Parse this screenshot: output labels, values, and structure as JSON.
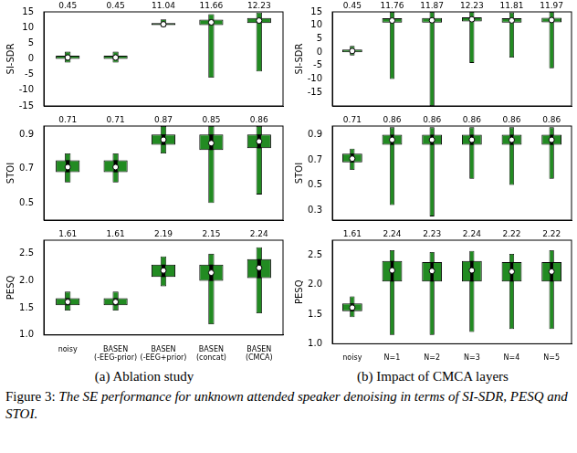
{
  "chart_data": [
    {
      "type": "violin",
      "panel": "a",
      "ylabel": "SI-SDR",
      "color": "#228b22",
      "grid": false,
      "tick_labels": "y",
      "categories": [
        "noisy",
        [
          "BASEN",
          "(-EEG-prior)"
        ],
        [
          "BASEN",
          "(-EEG+prior)"
        ],
        [
          "BASEN",
          "(concat)"
        ],
        [
          "BASEN",
          "(CMCA)"
        ]
      ],
      "ylim": [
        -15,
        15
      ],
      "yticks": [
        -15,
        -10,
        -5,
        0,
        5,
        10,
        15
      ],
      "violins": [
        {
          "min": -1.2,
          "q1": 0,
          "median": 0.45,
          "q3": 1.0,
          "max": 2.3,
          "mean": 0.45
        },
        {
          "min": -1.2,
          "q1": 0,
          "median": 0.45,
          "q3": 1.0,
          "max": 2.3,
          "mean": 0.45
        },
        {
          "min": 10.2,
          "q1": 10.8,
          "median": 11.04,
          "q3": 11.4,
          "max": 12.6,
          "mean": 11.04
        },
        {
          "min": -6,
          "q1": 10.8,
          "median": 11.66,
          "q3": 12.5,
          "max": 14.3,
          "mean": 11.66
        },
        {
          "min": -4,
          "q1": 11.4,
          "median": 12.23,
          "q3": 13.0,
          "max": 14.8,
          "mean": 12.23
        }
      ]
    },
    {
      "type": "violin",
      "panel": "b",
      "ylabel": "SI-SDR",
      "color": "#228b22",
      "grid": false,
      "tick_labels": "y",
      "categories": [
        "noisy",
        "N=1",
        "N=2",
        "N=3",
        "N=4",
        "N=5"
      ],
      "ylim": [
        -20,
        15
      ],
      "yticks": [
        -15,
        -10,
        -5,
        0,
        5,
        10,
        15
      ],
      "violins": [
        {
          "min": -1.2,
          "q1": 0,
          "median": 0.45,
          "q3": 1.0,
          "max": 2.3,
          "mean": 0.45
        },
        {
          "min": -10,
          "q1": 11,
          "median": 11.76,
          "q3": 12.6,
          "max": 15,
          "mean": 11.76
        },
        {
          "min": -20,
          "q1": 11,
          "median": 11.87,
          "q3": 12.7,
          "max": 15,
          "mean": 11.87
        },
        {
          "min": -4,
          "q1": 11.4,
          "median": 12.23,
          "q3": 13,
          "max": 15,
          "mean": 12.23
        },
        {
          "min": -2,
          "q1": 11,
          "median": 11.81,
          "q3": 12.6,
          "max": 14.8,
          "mean": 11.81
        },
        {
          "min": -6,
          "q1": 11.1,
          "median": 11.97,
          "q3": 12.8,
          "max": 15,
          "mean": 11.97
        }
      ]
    },
    {
      "type": "violin",
      "panel": "a",
      "ylabel": "STOI",
      "color": "#228b22",
      "grid": false,
      "tick_labels": "y",
      "categories": [
        "noisy",
        [
          "BASEN",
          "(-EEG-prior)"
        ],
        [
          "BASEN",
          "(-EEG+prior)"
        ],
        [
          "BASEN",
          "(concat)"
        ],
        [
          "BASEN",
          "(CMCA)"
        ]
      ],
      "ylim": [
        0.4,
        0.95
      ],
      "yticks": [
        0.5,
        0.7,
        0.9
      ],
      "violins": [
        {
          "min": 0.62,
          "q1": 0.68,
          "median": 0.71,
          "q3": 0.75,
          "max": 0.79,
          "mean": 0.71
        },
        {
          "min": 0.62,
          "q1": 0.68,
          "median": 0.71,
          "q3": 0.75,
          "max": 0.79,
          "mean": 0.71
        },
        {
          "min": 0.79,
          "q1": 0.84,
          "median": 0.87,
          "q3": 0.9,
          "max": 0.95,
          "mean": 0.87
        },
        {
          "min": 0.5,
          "q1": 0.81,
          "median": 0.85,
          "q3": 0.9,
          "max": 0.95,
          "mean": 0.85
        },
        {
          "min": 0.55,
          "q1": 0.82,
          "median": 0.86,
          "q3": 0.9,
          "max": 0.95,
          "mean": 0.86
        }
      ]
    },
    {
      "type": "violin",
      "panel": "b",
      "ylabel": "STOI",
      "color": "#228b22",
      "grid": false,
      "tick_labels": "y",
      "categories": [
        "noisy",
        "N=1",
        "N=2",
        "N=3",
        "N=4",
        "N=5"
      ],
      "ylim": [
        0.22,
        0.97
      ],
      "yticks": [
        0.3,
        0.5,
        0.7,
        0.9
      ],
      "violins": [
        {
          "min": 0.62,
          "q1": 0.68,
          "median": 0.71,
          "q3": 0.75,
          "max": 0.79,
          "mean": 0.71
        },
        {
          "min": 0.34,
          "q1": 0.82,
          "median": 0.86,
          "q3": 0.9,
          "max": 0.96,
          "mean": 0.86
        },
        {
          "min": 0.25,
          "q1": 0.82,
          "median": 0.86,
          "q3": 0.9,
          "max": 0.96,
          "mean": 0.86
        },
        {
          "min": 0.55,
          "q1": 0.82,
          "median": 0.86,
          "q3": 0.9,
          "max": 0.96,
          "mean": 0.86
        },
        {
          "min": 0.5,
          "q1": 0.82,
          "median": 0.86,
          "q3": 0.9,
          "max": 0.96,
          "mean": 0.86
        },
        {
          "min": 0.55,
          "q1": 0.82,
          "median": 0.86,
          "q3": 0.9,
          "max": 0.96,
          "mean": 0.86
        }
      ]
    },
    {
      "type": "violin",
      "panel": "a",
      "ylabel": "PESQ",
      "color": "#228b22",
      "grid": false,
      "tick_labels": true,
      "categories": [
        "noisy",
        [
          "BASEN",
          "(-EEG-prior)"
        ],
        [
          "BASEN",
          "(-EEG+prior)"
        ],
        [
          "BASEN",
          "(concat)"
        ],
        [
          "BASEN",
          "(CMCA)"
        ]
      ],
      "ylim": [
        1.0,
        2.75
      ],
      "yticks": [
        {
          "value": 1.0,
          "label": "1.0"
        },
        1.5,
        {
          "value": 2.0,
          "label": "2.0"
        },
        2.5
      ],
      "violins": [
        {
          "min": 1.45,
          "q1": 1.55,
          "median": 1.61,
          "q3": 1.68,
          "max": 1.8,
          "mean": 1.61
        },
        {
          "min": 1.45,
          "q1": 1.55,
          "median": 1.61,
          "q3": 1.68,
          "max": 1.8,
          "mean": 1.61
        },
        {
          "min": 1.9,
          "q1": 2.07,
          "median": 2.19,
          "q3": 2.3,
          "max": 2.45,
          "mean": 2.19
        },
        {
          "min": 1.2,
          "q1": 2.0,
          "median": 2.15,
          "q3": 2.3,
          "max": 2.5,
          "mean": 2.15
        },
        {
          "min": 1.4,
          "q1": 2.05,
          "median": 2.24,
          "q3": 2.4,
          "max": 2.62,
          "mean": 2.24
        }
      ]
    },
    {
      "type": "violin",
      "panel": "b",
      "ylabel": "PESQ",
      "color": "#228b22",
      "grid": false,
      "tick_labels": true,
      "categories": [
        "noisy",
        "N=1",
        "N=2",
        "N=3",
        "N=4",
        "N=5"
      ],
      "ylim": [
        1.0,
        2.75
      ],
      "yticks": [
        {
          "value": 1.0,
          "label": "1.0"
        },
        1.5,
        {
          "value": 2.0,
          "label": "2.0"
        },
        2.5
      ],
      "violins": [
        {
          "min": 1.45,
          "q1": 1.55,
          "median": 1.61,
          "q3": 1.68,
          "max": 1.8,
          "mean": 1.61
        },
        {
          "min": 1.15,
          "q1": 2.05,
          "median": 2.24,
          "q3": 2.4,
          "max": 2.58,
          "mean": 2.24
        },
        {
          "min": 1.15,
          "q1": 2.05,
          "median": 2.23,
          "q3": 2.38,
          "max": 2.55,
          "mean": 2.23
        },
        {
          "min": 1.2,
          "q1": 2.05,
          "median": 2.24,
          "q3": 2.4,
          "max": 2.57,
          "mean": 2.24
        },
        {
          "min": 1.25,
          "q1": 2.05,
          "median": 2.22,
          "q3": 2.38,
          "max": 2.52,
          "mean": 2.22
        },
        {
          "min": 1.25,
          "q1": 2.05,
          "median": 2.22,
          "q3": 2.38,
          "max": 2.58,
          "mean": 2.22
        }
      ]
    }
  ],
  "subplot_captions": [
    {
      "panel": "a",
      "text": "(a) Ablation study"
    },
    {
      "panel": "b",
      "text": "(b) Impact of CMCA layers"
    }
  ],
  "figure_caption": {
    "label": "Figure 3:",
    "text": "The SE performance for unknown attended speaker denoising in terms of SI-SDR, PESQ and STOI."
  }
}
